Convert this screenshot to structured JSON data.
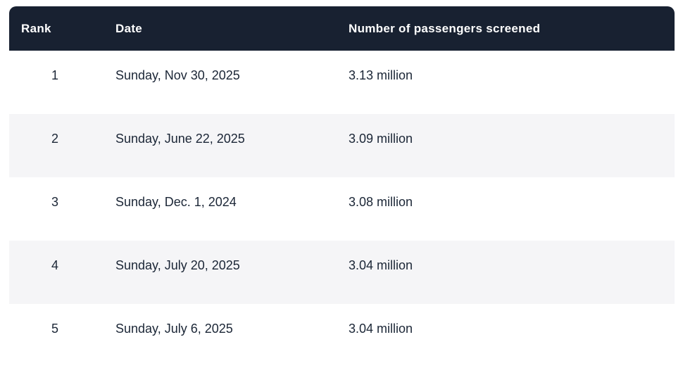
{
  "colors": {
    "header_bg": "#182131",
    "header_text": "#ffffff",
    "stripe_bg": "#f5f5f7",
    "row_bg": "#ffffff",
    "body_text": "#1b2636"
  },
  "table": {
    "header": [
      "Rank",
      "Date",
      "Number of passengers screened"
    ],
    "rows": [
      [
        "1",
        "Sunday, Nov 30, 2025",
        "3.13 million"
      ],
      [
        "2",
        "Sunday, June 22, 2025",
        "3.09 million"
      ],
      [
        "3",
        "Sunday, Dec. 1, 2024",
        "3.08 million"
      ],
      [
        "4",
        "Sunday, July 20, 2025",
        "3.04 million"
      ],
      [
        "5",
        "Sunday, July 6, 2025",
        "3.04 million"
      ]
    ]
  },
  "chart_data": {
    "type": "table",
    "columns": [
      "Rank",
      "Date",
      "Number of passengers screened"
    ],
    "rows": [
      {
        "rank": 1,
        "date": "Sunday, Nov 30, 2025",
        "passengers_screened_millions": 3.13,
        "passengers_label": "3.13 million"
      },
      {
        "rank": 2,
        "date": "Sunday, June 22, 2025",
        "passengers_screened_millions": 3.09,
        "passengers_label": "3.09 million"
      },
      {
        "rank": 3,
        "date": "Sunday, Dec. 1, 2024",
        "passengers_screened_millions": 3.08,
        "passengers_label": "3.08 million"
      },
      {
        "rank": 4,
        "date": "Sunday, July 20, 2025",
        "passengers_screened_millions": 3.04,
        "passengers_label": "3.04 million"
      },
      {
        "rank": 5,
        "date": "Sunday, July 6, 2025",
        "passengers_screened_millions": 3.04,
        "passengers_label": "3.04 million"
      }
    ],
    "title": "",
    "layout": "ranked data table, dark navy header row, alternating white and light-gray body rows"
  }
}
